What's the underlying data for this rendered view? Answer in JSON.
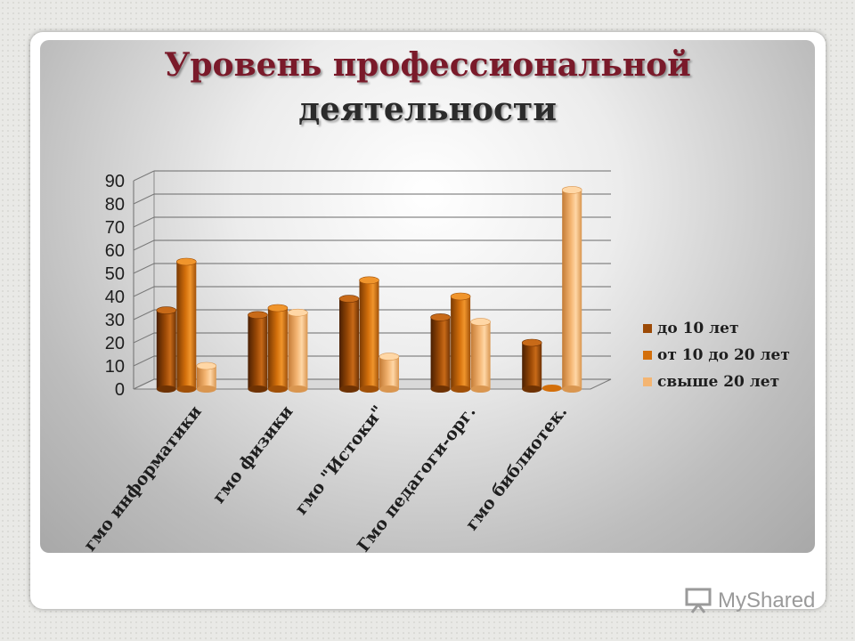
{
  "title": {
    "line1": "Уровень профессиональной",
    "line2": "деятельности"
  },
  "watermark": "MyShared",
  "colors": {
    "series": [
      "#9c4a06",
      "#d36f0b",
      "#f4b572"
    ],
    "title": "#7a1a2a"
  },
  "chart_data": {
    "type": "bar",
    "categories": [
      "гмо информатики",
      "гмо физики",
      "гмо \"Истоки\"",
      "Гмо педагоги-орг.",
      "гмо библиотек."
    ],
    "series": [
      {
        "name": "до 10 лет",
        "values": [
          34,
          32,
          39,
          31,
          20
        ]
      },
      {
        "name": "от 10 до 20 лет",
        "values": [
          55,
          35,
          47,
          40,
          0
        ]
      },
      {
        "name": "свыше 20 лет",
        "values": [
          10,
          33,
          14,
          29,
          86
        ]
      }
    ],
    "ylim": [
      0,
      90
    ],
    "yticks": [
      "0",
      "10",
      "20",
      "30",
      "40",
      "50",
      "60",
      "70",
      "80",
      "90"
    ],
    "grid": true,
    "legend": "right",
    "three_d": true
  }
}
